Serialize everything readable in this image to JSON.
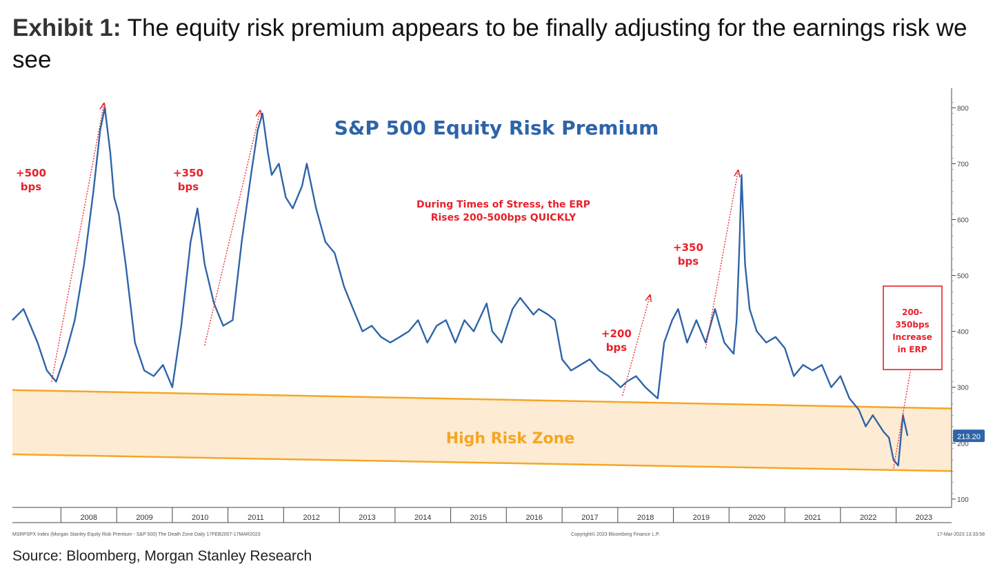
{
  "exhibit": {
    "label": "Exhibit 1:",
    "title": "The equity risk premium appears to be finally adjusting for the earnings risk we see"
  },
  "source": "Source: Bloomberg, Morgan Stanley Research",
  "footer": {
    "left": "MSRPSPX Index (Morgan Stanley Equity Risk Premium - S&P 500) The Death Zone  Daily 17FEB2007-17MAR2023",
    "center": "Copyright© 2023 Bloomberg Finance L.P.",
    "right": "17-Mar-2023 13:33:58"
  },
  "chart_data": {
    "type": "line",
    "title": "S&P 500 Equity Risk Premium",
    "xlabel": "",
    "ylabel": "",
    "x_ticks": [
      "2008",
      "2009",
      "2010",
      "2011",
      "2012",
      "2013",
      "2014",
      "2015",
      "2016",
      "2017",
      "2018",
      "2019",
      "2020",
      "2021",
      "2022",
      "2023"
    ],
    "y_ticks": [
      100,
      200,
      300,
      400,
      500,
      600,
      700,
      800
    ],
    "xlim": [
      "2007-02-17",
      "2023-12-31"
    ],
    "ylim": [
      85,
      835
    ],
    "grid": false,
    "last_value_label": "213.20",
    "line_color": "#2e64a8",
    "zone_color": "#f5a623",
    "annotation_color": "#e8202a",
    "series": [
      {
        "x": [
          "2007-02-17",
          "2007-05-01",
          "2007-08-01",
          "2007-10-01",
          "2007-12-01",
          "2008-02-01",
          "2008-04-01",
          "2008-06-01",
          "2008-08-01",
          "2008-09-15",
          "2008-10-15",
          "2008-11-20",
          "2008-12-15",
          "2009-01-15",
          "2009-03-01",
          "2009-05-01",
          "2009-07-01",
          "2009-09-01",
          "2009-11-01",
          "2010-01-01",
          "2010-03-01",
          "2010-05-01",
          "2010-06-15",
          "2010-08-01",
          "2010-10-01",
          "2010-12-01",
          "2011-02-01",
          "2011-04-01",
          "2011-06-01",
          "2011-07-15",
          "2011-08-15",
          "2011-09-20",
          "2011-10-15",
          "2011-12-01",
          "2012-01-15",
          "2012-03-01",
          "2012-05-01",
          "2012-06-01",
          "2012-08-01",
          "2012-10-01",
          "2012-12-01",
          "2013-02-01",
          "2013-04-01",
          "2013-06-01",
          "2013-08-01",
          "2013-10-01",
          "2013-12-01",
          "2014-02-01",
          "2014-04-01",
          "2014-06-01",
          "2014-08-01",
          "2014-10-01",
          "2014-12-01",
          "2015-02-01",
          "2015-04-01",
          "2015-06-01",
          "2015-08-25",
          "2015-10-01",
          "2015-12-01",
          "2016-02-11",
          "2016-04-01",
          "2016-06-27",
          "2016-08-01",
          "2016-10-01",
          "2016-11-15",
          "2017-01-01",
          "2017-03-01",
          "2017-05-01",
          "2017-07-01",
          "2017-09-01",
          "2017-11-01",
          "2018-01-20",
          "2018-03-01",
          "2018-05-01",
          "2018-07-01",
          "2018-09-20",
          "2018-11-01",
          "2018-12-24",
          "2019-02-01",
          "2019-04-01",
          "2019-06-01",
          "2019-08-01",
          "2019-10-01",
          "2019-12-01",
          "2020-01-31",
          "2020-02-20",
          "2020-03-10",
          "2020-03-23",
          "2020-04-15",
          "2020-05-15",
          "2020-07-01",
          "2020-09-01",
          "2020-11-01",
          "2021-01-01",
          "2021-03-01",
          "2021-05-01",
          "2021-07-01",
          "2021-09-01",
          "2021-11-01",
          "2022-01-01",
          "2022-03-01",
          "2022-05-01",
          "2022-06-16",
          "2022-08-01",
          "2022-10-12",
          "2022-11-15",
          "2022-12-15",
          "2023-01-15",
          "2023-02-15",
          "2023-03-17"
        ],
        "y": [
          420,
          440,
          380,
          330,
          310,
          360,
          420,
          520,
          650,
          760,
          800,
          720,
          640,
          610,
          520,
          380,
          330,
          320,
          340,
          300,
          410,
          560,
          620,
          520,
          450,
          410,
          420,
          560,
          680,
          760,
          790,
          720,
          680,
          700,
          640,
          620,
          660,
          700,
          620,
          560,
          540,
          480,
          440,
          400,
          410,
          390,
          380,
          390,
          400,
          420,
          380,
          410,
          420,
          380,
          420,
          400,
          450,
          400,
          380,
          440,
          460,
          430,
          440,
          430,
          420,
          350,
          330,
          340,
          350,
          330,
          320,
          300,
          310,
          320,
          300,
          280,
          380,
          420,
          440,
          380,
          420,
          380,
          440,
          380,
          360,
          420,
          560,
          680,
          520,
          440,
          400,
          380,
          390,
          370,
          320,
          340,
          330,
          340,
          300,
          320,
          280,
          260,
          230,
          250,
          220,
          210,
          170,
          160,
          250,
          213.2
        ]
      }
    ],
    "high_risk_zone": {
      "label": "High Risk Zone",
      "upper": [
        {
          "x": "2007-02-17",
          "y": 295
        },
        {
          "x": "2023-12-31",
          "y": 262
        }
      ],
      "lower": [
        {
          "x": "2007-02-17",
          "y": 180
        },
        {
          "x": "2023-12-31",
          "y": 150
        }
      ]
    },
    "annotations": [
      {
        "text": [
          "+500",
          "bps"
        ],
        "from": {
          "x": "2007-11-01",
          "y": 310
        },
        "to": {
          "x": "2008-10-10",
          "y": 808
        }
      },
      {
        "text": [
          "+350",
          "bps"
        ],
        "from": {
          "x": "2010-08-01",
          "y": 375
        },
        "to": {
          "x": "2011-08-01",
          "y": 795
        }
      },
      {
        "text": [
          "During Times of Stress, the ERP",
          "Rises 200-500bps QUICKLY"
        ]
      },
      {
        "text": [
          "+350",
          "bps"
        ],
        "from": {
          "x": "2019-08-01",
          "y": 370
        },
        "to": {
          "x": "2020-03-01",
          "y": 688
        }
      },
      {
        "text": [
          "+200",
          "bps"
        ],
        "from": {
          "x": "2018-02-01",
          "y": 285
        },
        "to": {
          "x": "2018-08-01",
          "y": 465
        }
      },
      {
        "text": [
          "200-",
          "350bps",
          "Increase",
          "in ERP"
        ],
        "from": {
          "x": "2022-12-15",
          "y": 155
        },
        "to": {
          "x": "2023-04-15",
          "y": 345
        }
      }
    ]
  }
}
